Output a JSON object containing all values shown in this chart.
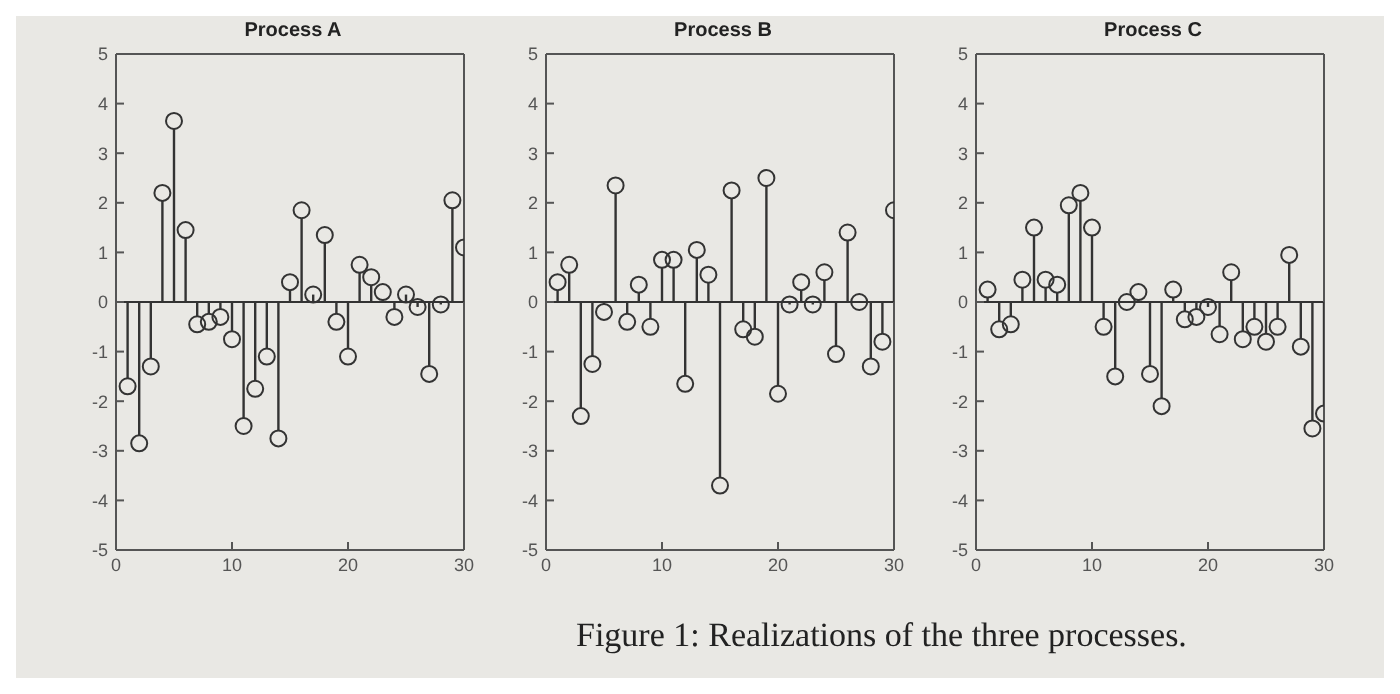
{
  "chart_data": [
    {
      "type": "lollipop",
      "title": "Process A",
      "x": [
        1,
        2,
        3,
        4,
        5,
        6,
        7,
        8,
        9,
        10,
        11,
        12,
        13,
        14,
        15,
        16,
        17,
        18,
        19,
        20,
        21,
        22,
        23,
        24,
        25,
        26,
        27,
        28,
        29,
        30
      ],
      "values": [
        -1.7,
        -2.85,
        -1.3,
        2.2,
        3.65,
        1.45,
        -0.45,
        -0.4,
        -0.3,
        -0.75,
        -2.5,
        -1.75,
        -1.1,
        -2.75,
        0.4,
        1.85,
        0.15,
        1.35,
        -0.4,
        -1.1,
        0.75,
        0.5,
        0.2,
        -0.3,
        0.15,
        -0.1,
        -1.45,
        -0.05,
        2.05,
        1.1
      ],
      "color": "#333333",
      "marker": "circle",
      "xlim": [
        0,
        30
      ],
      "xticks": [
        0,
        10,
        20,
        30
      ],
      "ylim": [
        -5,
        5
      ],
      "yticks": [
        -5,
        -4,
        -3,
        -2,
        -1,
        0,
        1,
        2,
        3,
        4,
        5
      ]
    },
    {
      "type": "lollipop",
      "title": "Process B",
      "x": [
        1,
        2,
        3,
        4,
        5,
        6,
        7,
        8,
        9,
        10,
        11,
        12,
        13,
        14,
        15,
        16,
        17,
        18,
        19,
        20,
        21,
        22,
        23,
        24,
        25,
        26,
        27,
        28,
        29,
        30
      ],
      "values": [
        0.4,
        0.75,
        -2.3,
        -1.25,
        -0.2,
        2.35,
        -0.4,
        0.35,
        -0.5,
        0.85,
        0.85,
        -1.65,
        1.05,
        0.55,
        -3.7,
        2.25,
        -0.55,
        -0.7,
        2.5,
        -1.85,
        -0.05,
        0.4,
        -0.05,
        0.6,
        -1.05,
        1.4,
        0,
        -1.3,
        -0.8,
        1.85
      ],
      "color": "#333333",
      "marker": "circle",
      "xlim": [
        0,
        30
      ],
      "xticks": [
        0,
        10,
        20,
        30
      ],
      "ylim": [
        -5,
        5
      ],
      "yticks": [
        -5,
        -4,
        -3,
        -2,
        -1,
        0,
        1,
        2,
        3,
        4,
        5
      ]
    },
    {
      "type": "lollipop",
      "title": "Process C",
      "x": [
        1,
        2,
        3,
        4,
        5,
        6,
        7,
        8,
        9,
        10,
        11,
        12,
        13,
        14,
        15,
        16,
        17,
        18,
        19,
        20,
        21,
        22,
        23,
        24,
        25,
        26,
        27,
        28,
        29,
        30
      ],
      "values": [
        0.25,
        -0.55,
        -0.45,
        0.45,
        1.5,
        0.45,
        0.35,
        1.95,
        2.2,
        1.5,
        -0.5,
        -1.5,
        0,
        0.2,
        -1.45,
        -2.1,
        0.25,
        -0.35,
        -0.3,
        -0.1,
        -0.65,
        0.6,
        -0.75,
        -0.5,
        -0.8,
        -0.5,
        0.95,
        -0.9,
        -2.55,
        -2.25
      ],
      "color": "#333333",
      "marker": "circle",
      "xlim": [
        0,
        30
      ],
      "xticks": [
        0,
        10,
        20,
        30
      ],
      "ylim": [
        -5,
        5
      ],
      "yticks": [
        -5,
        -4,
        -3,
        -2,
        -1,
        0,
        1,
        2,
        3,
        4,
        5
      ],
      "annotations": [
        "Figure 1: Realizations of the three processes."
      ]
    }
  ]
}
